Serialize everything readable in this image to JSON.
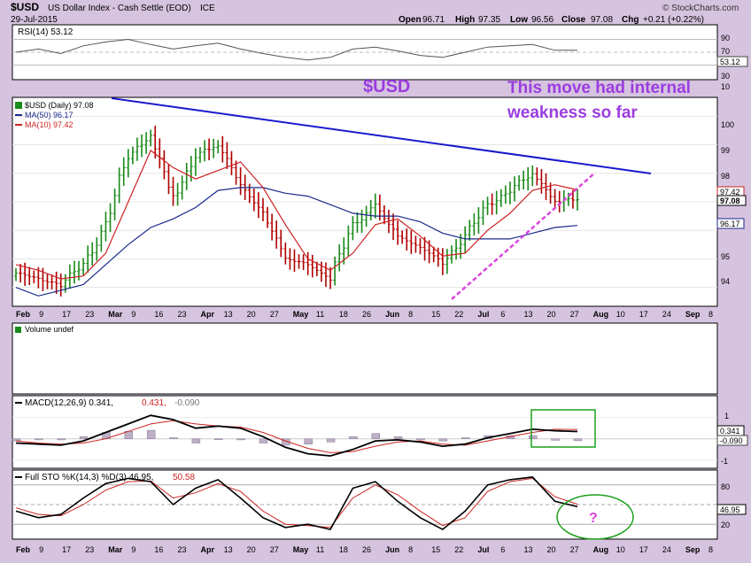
{
  "header": {
    "ticker": "$USD",
    "name": "US Dollar Index - Cash Settle (EOD)",
    "exchange": "ICE",
    "date": "29-Jul-2015",
    "brand": "© StockCharts.com",
    "open_label": "Open",
    "open": "96.71",
    "high_label": "High",
    "high": "97.35",
    "low_label": "Low",
    "low": "96.56",
    "close_label": "Close",
    "close": "97.08",
    "chg_label": "Chg",
    "chg": "+0.21 (+0.22%)"
  },
  "rsi": {
    "label": "RSI(14) 53.12",
    "levels": [
      "90",
      "70",
      "50",
      "30",
      "10"
    ],
    "current": "53.12"
  },
  "price": {
    "legend_main": "$USD (Daily) 97.08",
    "legend_ma50": "MA(50) 96.17",
    "legend_ma10": "MA(10) 97.42",
    "y_ticks": [
      "100",
      "99",
      "98",
      "97",
      "96",
      "95",
      "94"
    ],
    "tag_ma10": "97.42",
    "tag_close": "97.08",
    "tag_ma50": "96.17"
  },
  "annotations": {
    "symbol": "$USD",
    "note_line1": "This move had internal",
    "note_line2": "weakness so far",
    "question": "?"
  },
  "x_axis": {
    "labels": [
      "Feb",
      "9",
      "17",
      "23",
      "Mar",
      "9",
      "16",
      "23",
      "Apr",
      "13",
      "20",
      "27",
      "May",
      "11",
      "18",
      "26",
      "Jun",
      "8",
      "15",
      "22",
      "Jul",
      "6",
      "13",
      "20",
      "27",
      "Aug",
      "10",
      "17",
      "24",
      "Sep",
      "8"
    ]
  },
  "volume": {
    "label": "Volume undef"
  },
  "macd": {
    "label_main": "MACD(12,26,9) 0.341,",
    "label_signal": "0.431,",
    "label_hist": "-0.090",
    "y_ticks": [
      "1",
      "0",
      "-1"
    ],
    "tag_macd": "0.341",
    "tag_hist": "-0.090"
  },
  "sto": {
    "label_main": "Full STO %K(14,3) %D(3) 46.95,",
    "label_d": "50.58",
    "y_ticks": [
      "80",
      "50",
      "20"
    ],
    "tag_k": "46.95"
  },
  "colors": {
    "background": "#d6c3df",
    "panel": "#ffffff",
    "up_bar": "#1a8a1a",
    "down_bar": "#b00000",
    "ma10": "#cc2222",
    "ma50": "#1a2a8a",
    "trendline": "#1a1acc",
    "support_line": "#dd44dd",
    "annotation_text": "#9b3de0",
    "box_green": "#1aa01a"
  },
  "chart_data": {
    "type": "ohlc",
    "title": "$USD US Dollar Index - Cash Settle (EOD)",
    "x": [
      "Feb 2",
      "Feb 9",
      "Feb 17",
      "Feb 23",
      "Mar 2",
      "Mar 9",
      "Mar 16",
      "Mar 23",
      "Apr 1",
      "Apr 13",
      "Apr 20",
      "Apr 27",
      "May 4",
      "May 11",
      "May 18",
      "May 26",
      "Jun 1",
      "Jun 8",
      "Jun 15",
      "Jun 22",
      "Jul 1",
      "Jul 6",
      "Jul 13",
      "Jul 20",
      "Jul 27",
      "Jul 29"
    ],
    "series": [
      {
        "name": "$USD (Daily)",
        "values": [
          94.5,
          94.3,
          94.1,
          94.8,
          96.2,
          98.6,
          99.4,
          97.2,
          98.6,
          99.0,
          97.6,
          96.6,
          95.0,
          94.8,
          94.3,
          96.2,
          96.9,
          95.8,
          95.4,
          94.9,
          95.8,
          96.9,
          97.4,
          98.0,
          97.0,
          97.08
        ]
      },
      {
        "name": "MA(50)",
        "values": [
          94.0,
          93.7,
          93.9,
          94.1,
          94.8,
          95.5,
          96.1,
          96.4,
          96.8,
          97.4,
          97.5,
          97.5,
          97.3,
          97.2,
          96.9,
          96.6,
          96.5,
          96.5,
          96.3,
          95.9,
          95.7,
          95.7,
          95.7,
          95.9,
          96.1,
          96.17
        ]
      },
      {
        "name": "MA(10)",
        "values": [
          94.8,
          94.6,
          94.3,
          94.4,
          95.2,
          97.0,
          98.8,
          98.2,
          97.8,
          98.1,
          98.4,
          97.5,
          96.2,
          95.0,
          94.6,
          95.2,
          96.2,
          96.4,
          95.8,
          95.1,
          95.2,
          96.0,
          96.6,
          97.4,
          97.6,
          97.42
        ]
      }
    ],
    "ylim": [
      93.4,
      100.6
    ],
    "xlabel": "",
    "ylabel": "",
    "rsi": {
      "name": "RSI(14)",
      "ylim": [
        10,
        90
      ],
      "values": [
        50,
        55,
        48,
        60,
        66,
        70,
        62,
        55,
        60,
        64,
        55,
        48,
        42,
        38,
        42,
        55,
        58,
        52,
        45,
        42,
        50,
        58,
        60,
        62,
        53,
        53.12
      ]
    },
    "macd": {
      "ylim": [
        -1.3,
        1.4
      ],
      "macd": [
        -0.2,
        -0.25,
        -0.3,
        -0.1,
        0.3,
        0.7,
        1.1,
        0.9,
        0.5,
        0.6,
        0.5,
        0.1,
        -0.4,
        -0.7,
        -0.8,
        -0.5,
        -0.1,
        -0.05,
        -0.15,
        -0.35,
        -0.25,
        0.05,
        0.25,
        0.45,
        0.38,
        0.341
      ],
      "signal": [
        -0.1,
        -0.2,
        -0.25,
        -0.2,
        0.0,
        0.35,
        0.7,
        0.85,
        0.7,
        0.6,
        0.55,
        0.3,
        -0.1,
        -0.45,
        -0.65,
        -0.6,
        -0.35,
        -0.15,
        -0.1,
        -0.25,
        -0.3,
        -0.1,
        0.1,
        0.3,
        0.45,
        0.431
      ],
      "hist": [
        -0.1,
        -0.05,
        -0.05,
        0.1,
        0.3,
        0.35,
        0.4,
        0.05,
        -0.2,
        0.0,
        -0.05,
        -0.2,
        -0.3,
        -0.25,
        -0.15,
        0.1,
        0.25,
        0.1,
        -0.05,
        -0.1,
        0.05,
        0.15,
        0.15,
        0.15,
        -0.07,
        -0.09
      ]
    },
    "sto": {
      "ylim": [
        0,
        100
      ],
      "k": [
        40,
        30,
        35,
        60,
        82,
        90,
        85,
        50,
        75,
        88,
        60,
        30,
        15,
        20,
        12,
        75,
        85,
        55,
        30,
        12,
        40,
        80,
        88,
        92,
        55,
        46.95
      ],
      "d": [
        45,
        35,
        33,
        50,
        72,
        85,
        86,
        60,
        68,
        82,
        70,
        40,
        20,
        18,
        15,
        60,
        80,
        65,
        40,
        18,
        30,
        70,
        85,
        90,
        62,
        50.58
      ]
    }
  }
}
